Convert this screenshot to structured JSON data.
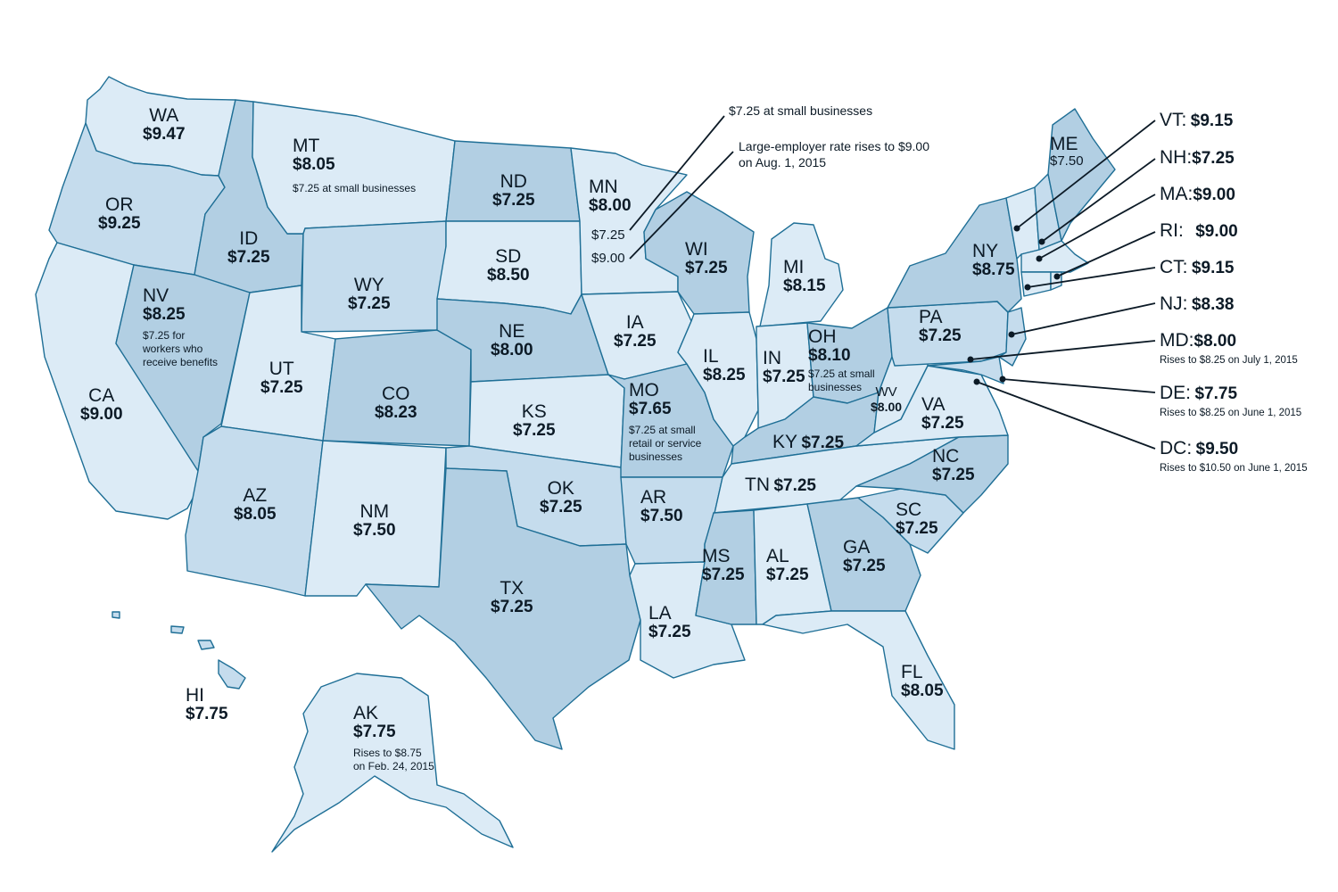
{
  "colors": {
    "light": "#dcebf6",
    "medium": "#c5dced",
    "dark": "#b2cfe3",
    "border": "#1f6f96",
    "line": "#0c1a26"
  },
  "states": {
    "WA": {
      "abbr": "WA",
      "rate": "$9.47"
    },
    "OR": {
      "abbr": "OR",
      "rate": "$9.25"
    },
    "CA": {
      "abbr": "CA",
      "rate": "$9.00"
    },
    "ID": {
      "abbr": "ID",
      "rate": "$7.25"
    },
    "NV": {
      "abbr": "NV",
      "rate": "$8.25",
      "note": "$7.25 for\nworkers who\nreceive benefits"
    },
    "MT": {
      "abbr": "MT",
      "rate": "$8.05",
      "note": "$7.25 at small businesses"
    },
    "WY": {
      "abbr": "WY",
      "rate": "$7.25"
    },
    "UT": {
      "abbr": "UT",
      "rate": "$7.25"
    },
    "AZ": {
      "abbr": "AZ",
      "rate": "$8.05"
    },
    "CO": {
      "abbr": "CO",
      "rate": "$8.23"
    },
    "NM": {
      "abbr": "NM",
      "rate": "$7.50"
    },
    "ND": {
      "abbr": "ND",
      "rate": "$7.25"
    },
    "SD": {
      "abbr": "SD",
      "rate": "$8.50"
    },
    "NE": {
      "abbr": "NE",
      "rate": "$8.00"
    },
    "KS": {
      "abbr": "KS",
      "rate": "$7.25"
    },
    "OK": {
      "abbr": "OK",
      "rate": "$7.25"
    },
    "TX": {
      "abbr": "TX",
      "rate": "$7.25"
    },
    "MN": {
      "abbr": "MN",
      "rate": "$8.00",
      "sub1": "$7.25",
      "sub2": "$9.00"
    },
    "IA": {
      "abbr": "IA",
      "rate": "$7.25"
    },
    "MO": {
      "abbr": "MO",
      "rate": "$7.65",
      "note": "$7.25 at small\nretail or service\nbusinesses"
    },
    "AR": {
      "abbr": "AR",
      "rate": "$7.50"
    },
    "LA": {
      "abbr": "LA",
      "rate": "$7.25"
    },
    "WI": {
      "abbr": "WI",
      "rate": "$7.25"
    },
    "IL": {
      "abbr": "IL",
      "rate": "$8.25"
    },
    "MI": {
      "abbr": "MI",
      "rate": "$8.15"
    },
    "IN": {
      "abbr": "IN",
      "rate": "$7.25"
    },
    "OH": {
      "abbr": "OH",
      "rate": "$8.10",
      "note": "$7.25 at small\nbusinesses"
    },
    "KY": {
      "abbr": "KY",
      "rate": "$7.25"
    },
    "TN": {
      "abbr": "TN",
      "rate": "$7.25"
    },
    "MS": {
      "abbr": "MS",
      "rate": "$7.25"
    },
    "AL": {
      "abbr": "AL",
      "rate": "$7.25"
    },
    "GA": {
      "abbr": "GA",
      "rate": "$7.25"
    },
    "FL": {
      "abbr": "FL",
      "rate": "$8.05"
    },
    "SC": {
      "abbr": "SC",
      "rate": "$7.25"
    },
    "NC": {
      "abbr": "NC",
      "rate": "$7.25"
    },
    "VA": {
      "abbr": "VA",
      "rate": "$7.25"
    },
    "WV": {
      "abbr": "WV",
      "rate": "$8.00"
    },
    "PA": {
      "abbr": "PA",
      "rate": "$7.25"
    },
    "NY": {
      "abbr": "NY",
      "rate": "$8.75"
    },
    "ME": {
      "abbr": "ME",
      "rate": "$7.50"
    },
    "HI": {
      "abbr": "HI",
      "rate": "$7.75"
    },
    "AK": {
      "abbr": "AK",
      "rate": "$7.75",
      "note": "Rises to $8.75\non Feb. 24, 2015"
    }
  },
  "east_labels": {
    "VT": {
      "abbr": "VT:",
      "rate": "$9.15"
    },
    "NH": {
      "abbr": "NH:",
      "rate": "$7.25"
    },
    "MA": {
      "abbr": "MA:",
      "rate": "$9.00"
    },
    "RI": {
      "abbr": "RI:",
      "rate": "$9.00"
    },
    "CT": {
      "abbr": "CT:",
      "rate": "$9.15"
    },
    "NJ": {
      "abbr": "NJ:",
      "rate": "$8.38"
    },
    "MD": {
      "abbr": "MD:",
      "rate": "$8.00",
      "note": "Rises to $8.25 on July 1, 2015"
    },
    "DE": {
      "abbr": "DE:",
      "rate": "$7.75",
      "note": "Rises to $8.25 on June 1, 2015"
    },
    "DC": {
      "abbr": "DC:",
      "rate": "$9.50",
      "note": "Rises to $10.50 on June 1, 2015"
    }
  },
  "callouts": {
    "small_businesses": "$7.25 at small businesses",
    "large_employer": "Large-employer rate rises to $9.00\non Aug. 1, 2015"
  }
}
